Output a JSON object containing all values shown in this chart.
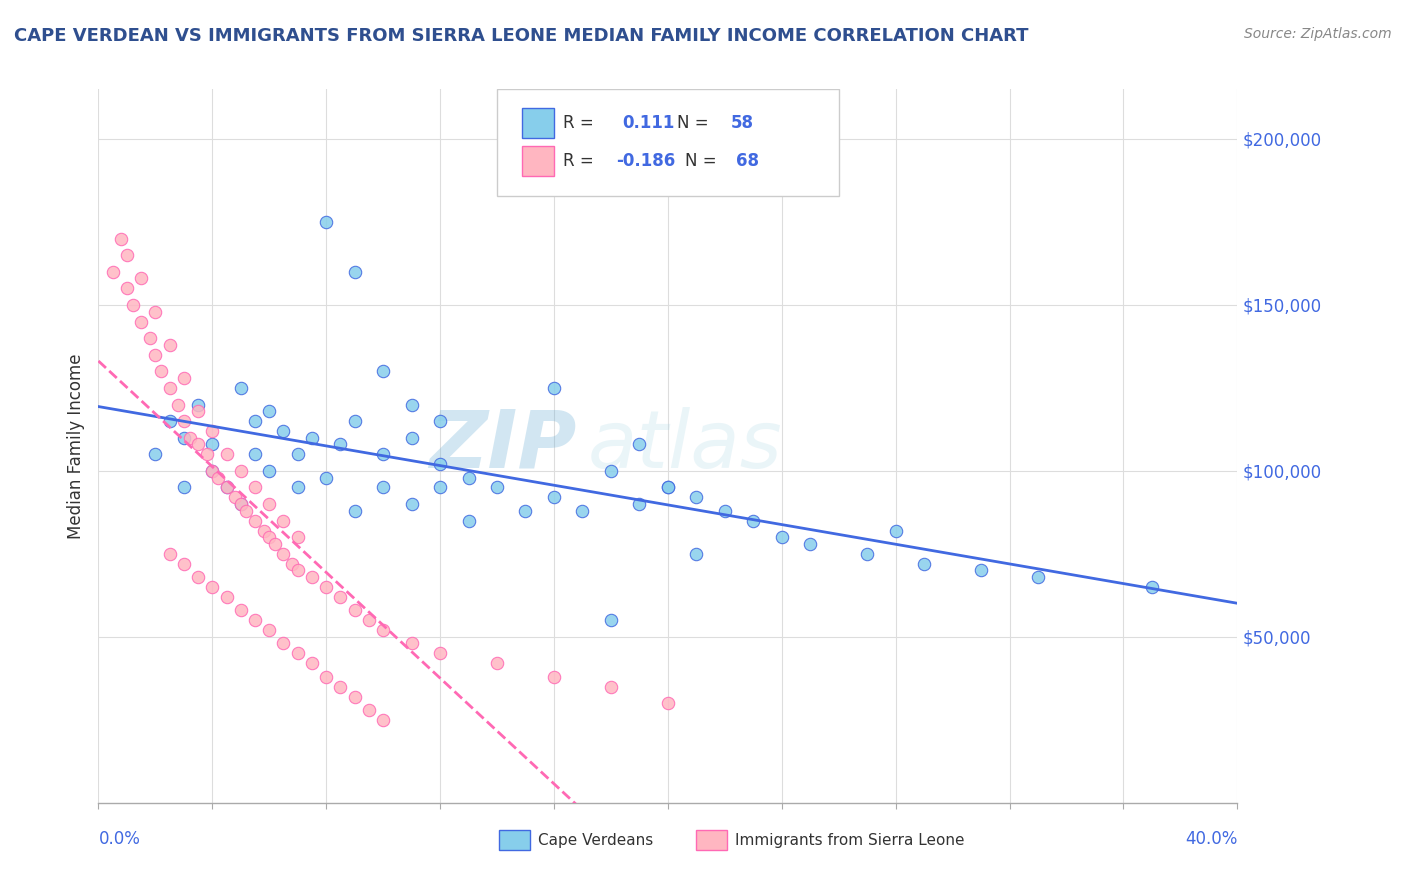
{
  "title": "CAPE VERDEAN VS IMMIGRANTS FROM SIERRA LEONE MEDIAN FAMILY INCOME CORRELATION CHART",
  "source": "Source: ZipAtlas.com",
  "ylabel": "Median Family Income",
  "y_ticks": [
    50000,
    100000,
    150000,
    200000
  ],
  "y_tick_labels": [
    "$50,000",
    "$100,000",
    "$150,000",
    "$200,000"
  ],
  "x_range": [
    0.0,
    0.4
  ],
  "y_range": [
    0,
    215000
  ],
  "color_blue": "#87CEEB",
  "color_pink": "#FFB6C1",
  "color_blue_line": "#4169E1",
  "color_pink_line": "#FF69B4",
  "color_title": "#2F4F8F",
  "watermark_zip": "ZIP",
  "watermark_atlas": "atlas",
  "blue_x": [
    0.02,
    0.025,
    0.03,
    0.03,
    0.035,
    0.04,
    0.04,
    0.045,
    0.05,
    0.05,
    0.055,
    0.055,
    0.06,
    0.06,
    0.065,
    0.07,
    0.07,
    0.075,
    0.08,
    0.085,
    0.09,
    0.09,
    0.1,
    0.1,
    0.11,
    0.11,
    0.12,
    0.12,
    0.13,
    0.13,
    0.14,
    0.15,
    0.16,
    0.17,
    0.18,
    0.19,
    0.2,
    0.21,
    0.22,
    0.23,
    0.24,
    0.25,
    0.27,
    0.29,
    0.31,
    0.33,
    0.37,
    0.28,
    0.19,
    0.2,
    0.21,
    0.08,
    0.09,
    0.1,
    0.11,
    0.12,
    0.16,
    0.18
  ],
  "blue_y": [
    105000,
    115000,
    110000,
    95000,
    120000,
    108000,
    100000,
    95000,
    125000,
    90000,
    115000,
    105000,
    118000,
    100000,
    112000,
    105000,
    95000,
    110000,
    98000,
    108000,
    115000,
    88000,
    105000,
    95000,
    110000,
    90000,
    102000,
    95000,
    98000,
    85000,
    95000,
    88000,
    92000,
    88000,
    100000,
    90000,
    95000,
    92000,
    88000,
    85000,
    80000,
    78000,
    75000,
    72000,
    70000,
    68000,
    65000,
    82000,
    108000,
    95000,
    75000,
    175000,
    160000,
    130000,
    120000,
    115000,
    125000,
    55000
  ],
  "pink_x": [
    0.005,
    0.008,
    0.01,
    0.01,
    0.012,
    0.015,
    0.015,
    0.018,
    0.02,
    0.02,
    0.022,
    0.025,
    0.025,
    0.028,
    0.03,
    0.03,
    0.032,
    0.035,
    0.035,
    0.038,
    0.04,
    0.04,
    0.042,
    0.045,
    0.045,
    0.048,
    0.05,
    0.05,
    0.052,
    0.055,
    0.055,
    0.058,
    0.06,
    0.06,
    0.062,
    0.065,
    0.065,
    0.068,
    0.07,
    0.07,
    0.075,
    0.08,
    0.085,
    0.09,
    0.095,
    0.1,
    0.11,
    0.12,
    0.14,
    0.16,
    0.18,
    0.2,
    0.025,
    0.03,
    0.035,
    0.04,
    0.045,
    0.05,
    0.055,
    0.06,
    0.065,
    0.07,
    0.075,
    0.08,
    0.085,
    0.09,
    0.095,
    0.1
  ],
  "pink_y": [
    160000,
    170000,
    155000,
    165000,
    150000,
    145000,
    158000,
    140000,
    135000,
    148000,
    130000,
    125000,
    138000,
    120000,
    115000,
    128000,
    110000,
    108000,
    118000,
    105000,
    100000,
    112000,
    98000,
    95000,
    105000,
    92000,
    90000,
    100000,
    88000,
    85000,
    95000,
    82000,
    80000,
    90000,
    78000,
    75000,
    85000,
    72000,
    70000,
    80000,
    68000,
    65000,
    62000,
    58000,
    55000,
    52000,
    48000,
    45000,
    42000,
    38000,
    35000,
    30000,
    75000,
    72000,
    68000,
    65000,
    62000,
    58000,
    55000,
    52000,
    48000,
    45000,
    42000,
    38000,
    35000,
    32000,
    28000,
    25000
  ]
}
